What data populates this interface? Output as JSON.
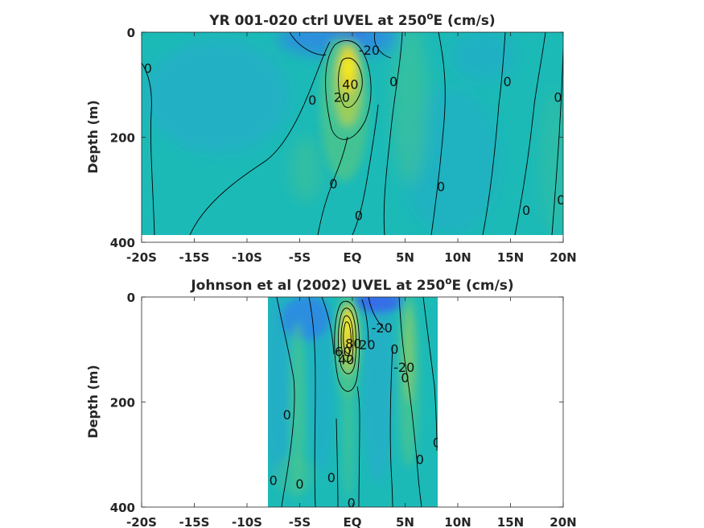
{
  "colors": {
    "field_base": "#1cbab7",
    "cool_1": "#25a8cf",
    "cool_2": "#2f86e6",
    "cool_3": "#3b5ef0",
    "warm_1": "#49c48f",
    "warm_2": "#9fcf56",
    "warm_3": "#e8d627",
    "warm_4": "#f7f31a",
    "contour": "#000000",
    "axis": "#262626"
  },
  "chart_data": [
    {
      "type": "heatmap",
      "title": "YR 001-020 ctrl UVEL at 250",
      "title_superscript": "o",
      "title_suffix": "E (cm/s)",
      "ylabel": "Depth (m)",
      "xlabel": "",
      "x_ticks": [
        "-20S",
        "-15S",
        "-10S",
        "-5S",
        "EQ",
        "5N",
        "10N",
        "15N",
        "20N"
      ],
      "x_tick_values": [
        -20,
        -15,
        -10,
        -5,
        0,
        5,
        10,
        15,
        20
      ],
      "y_ticks": [
        "0",
        "200",
        "400"
      ],
      "y_tick_values": [
        0,
        200,
        400
      ],
      "xlim": [
        -20,
        20
      ],
      "ylim": [
        400,
        0
      ],
      "data_extent": {
        "lat": [
          -20,
          20
        ],
        "depth": [
          0,
          385
        ]
      },
      "contour_labels": [
        {
          "text": "0",
          "lat": -19.4,
          "depth": 70
        },
        {
          "text": "-20",
          "lat": 1.6,
          "depth": 35
        },
        {
          "text": "40",
          "lat": -0.2,
          "depth": 100
        },
        {
          "text": "20",
          "lat": -1.0,
          "depth": 125
        },
        {
          "text": "0",
          "lat": -3.8,
          "depth": 130
        },
        {
          "text": "0",
          "lat": 3.9,
          "depth": 95
        },
        {
          "text": "0",
          "lat": 14.7,
          "depth": 95
        },
        {
          "text": "0",
          "lat": 19.5,
          "depth": 125
        },
        {
          "text": "0",
          "lat": -1.8,
          "depth": 290
        },
        {
          "text": "0",
          "lat": 0.6,
          "depth": 350
        },
        {
          "text": "0",
          "lat": 8.4,
          "depth": 295
        },
        {
          "text": "0",
          "lat": 16.5,
          "depth": 340
        },
        {
          "text": "0",
          "lat": 19.8,
          "depth": 320
        }
      ]
    },
    {
      "type": "heatmap",
      "title": "Johnson et al (2002) UVEL at 250",
      "title_superscript": "o",
      "title_suffix": "E (cm/s)",
      "ylabel": "Depth (m)",
      "xlabel": "",
      "x_ticks": [
        "-20S",
        "-15S",
        "-10S",
        "-5S",
        "EQ",
        "5N",
        "10N",
        "15N",
        "20N"
      ],
      "x_tick_values": [
        -20,
        -15,
        -10,
        -5,
        0,
        5,
        10,
        15,
        20
      ],
      "y_ticks": [
        "0",
        "200",
        "400"
      ],
      "y_tick_values": [
        0,
        200,
        400
      ],
      "xlim": [
        -20,
        20
      ],
      "ylim": [
        400,
        0
      ],
      "data_extent": {
        "lat": [
          -8,
          8.2
        ],
        "depth": [
          0,
          400
        ]
      },
      "contour_labels": [
        {
          "text": "-20",
          "lat": 2.8,
          "depth": 60
        },
        {
          "text": "80",
          "lat": 0.1,
          "depth": 90
        },
        {
          "text": "60",
          "lat": -0.9,
          "depth": 105
        },
        {
          "text": "40",
          "lat": -0.6,
          "depth": 120
        },
        {
          "text": "20",
          "lat": 1.4,
          "depth": 92
        },
        {
          "text": "0",
          "lat": 4.0,
          "depth": 100
        },
        {
          "text": "-20",
          "lat": 4.9,
          "depth": 135
        },
        {
          "text": "0",
          "lat": 5.0,
          "depth": 155
        },
        {
          "text": "0",
          "lat": -6.2,
          "depth": 225
        },
        {
          "text": "0",
          "lat": 8.0,
          "depth": 278
        },
        {
          "text": "0",
          "lat": 6.4,
          "depth": 310
        },
        {
          "text": "0",
          "lat": -7.5,
          "depth": 350
        },
        {
          "text": "0",
          "lat": -5.0,
          "depth": 357
        },
        {
          "text": "0",
          "lat": -2.0,
          "depth": 345
        },
        {
          "text": "0",
          "lat": -0.1,
          "depth": 393
        }
      ]
    }
  ]
}
